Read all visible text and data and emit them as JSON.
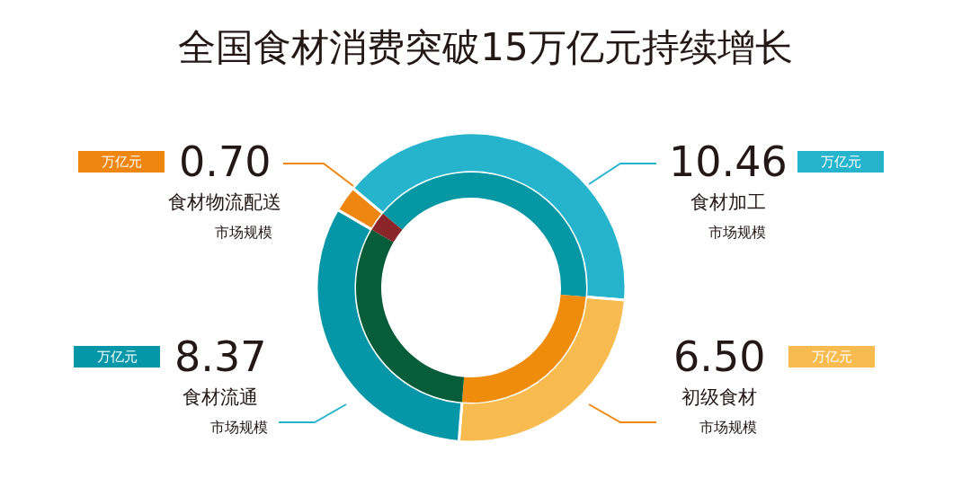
{
  "chart_data": {
    "type": "donut",
    "title": "全国食材消费突破15万亿元持续增长",
    "categories": [
      "食材加工",
      "初级食材",
      "食材流通",
      "食材物流配送"
    ],
    "series": [
      {
        "values": [
          10.46,
          6.5,
          8.37,
          0.7
        ],
        "value_labels": [
          "10.46",
          "6.50",
          "8.37",
          "0.70"
        ],
        "colors": [
          "#25b4cb",
          "#f7bb4f",
          "#0597a7",
          "#ee860f"
        ]
      },
      {
        "values": [
          40.18,
          24.97,
          32.16,
          2.69
        ],
        "colors": [
          "#0597a3",
          "#ef8c0c",
          "#075c3a",
          "#8a2529"
        ]
      }
    ],
    "annotations": [
      "万亿元",
      "市场规模"
    ],
    "legend": false
  }
}
